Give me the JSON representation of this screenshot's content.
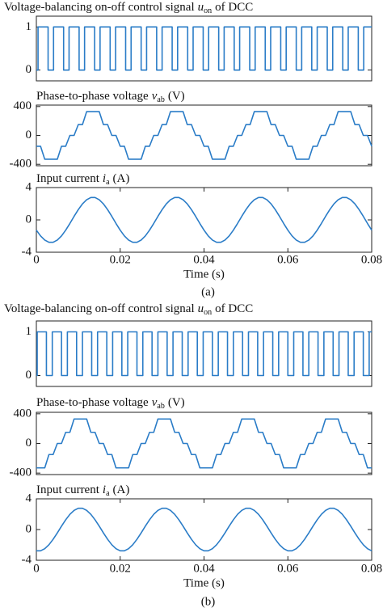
{
  "chart_data": [
    {
      "type": "line",
      "title": {
        "text": "Voltage-balancing on-off control signal",
        "symbol": "u",
        "subscript": "on",
        "suffix": "of DCC"
      },
      "x": [
        0,
        0.0004,
        0.0004,
        0.0028,
        0.0028,
        0.0041,
        0.0041,
        0.0065,
        0.0065,
        0.0078,
        0.0078,
        0.0102,
        0.0102,
        0.0115,
        0.0115,
        0.0139,
        0.0139,
        0.0152,
        0.0152,
        0.0176,
        0.0176,
        0.0189,
        0.0189,
        0.0213,
        0.0213,
        0.0226,
        0.0226,
        0.025,
        0.025,
        0.0263,
        0.0263,
        0.0287,
        0.0287,
        0.03,
        0.03,
        0.0324,
        0.0324,
        0.0337,
        0.0337,
        0.0361,
        0.0361,
        0.0374,
        0.0374,
        0.0398,
        0.0398,
        0.0411,
        0.0411,
        0.0435,
        0.0435,
        0.0448,
        0.0448,
        0.0472,
        0.0472,
        0.0485,
        0.0485,
        0.0509,
        0.0509,
        0.0522,
        0.0522,
        0.0546,
        0.0546,
        0.0559,
        0.0559,
        0.0583,
        0.0583,
        0.0596,
        0.0596,
        0.062,
        0.062,
        0.0633,
        0.0633,
        0.0657,
        0.0657,
        0.067,
        0.067,
        0.0694,
        0.0694,
        0.0707,
        0.0707,
        0.0731,
        0.0731,
        0.0744,
        0.0744,
        0.0768,
        0.0768,
        0.0781,
        0.0781,
        0.08
      ],
      "values": [
        0,
        0,
        1,
        1,
        0,
        0,
        1,
        1,
        0,
        0,
        1,
        1,
        0,
        0,
        1,
        1,
        0,
        0,
        1,
        1,
        0,
        0,
        1,
        1,
        0,
        0,
        1,
        1,
        0,
        0,
        1,
        1,
        0,
        0,
        1,
        1,
        0,
        0,
        1,
        1,
        0,
        0,
        1,
        1,
        0,
        0,
        1,
        1,
        0,
        0,
        1,
        1,
        0,
        0,
        1,
        1,
        0,
        0,
        1,
        1,
        0,
        0,
        1,
        1,
        0,
        0,
        1,
        1,
        0,
        0,
        1,
        1,
        0,
        0,
        1,
        1,
        0,
        0,
        1,
        1,
        0,
        0,
        1,
        1,
        0,
        0,
        1,
        1
      ],
      "color": "#2a7cc7",
      "xlim": [
        0,
        0.08
      ],
      "ylim": [
        -0.25,
        1.25
      ],
      "yticks": [
        0,
        1
      ]
    },
    {
      "type": "line",
      "title": {
        "text": "Phase-to-phase voltage",
        "symbol": "v",
        "subscript": "ab",
        "suffix": "(V)"
      },
      "x": [
        0,
        0.001,
        0.002,
        0.003,
        0.004,
        0.005,
        0.006,
        0.007,
        0.008,
        0.009,
        0.01,
        0.011,
        0.012,
        0.013,
        0.014,
        0.015,
        0.016,
        0.017,
        0.018,
        0.019,
        0.02,
        0.021,
        0.022,
        0.023,
        0.024,
        0.025,
        0.026,
        0.027,
        0.028,
        0.029,
        0.03,
        0.031,
        0.032,
        0.033,
        0.034,
        0.035,
        0.036,
        0.037,
        0.038,
        0.039,
        0.04,
        0.041,
        0.042,
        0.043,
        0.044,
        0.045,
        0.046,
        0.047,
        0.048,
        0.049,
        0.05,
        0.051,
        0.052,
        0.053,
        0.054,
        0.055,
        0.056,
        0.057,
        0.058,
        0.059,
        0.06,
        0.061,
        0.062,
        0.063,
        0.064,
        0.065,
        0.066,
        0.067,
        0.068,
        0.069,
        0.07,
        0.071,
        0.072,
        0.073,
        0.074,
        0.075,
        0.076,
        0.077,
        0.078,
        0.079,
        0.08
      ],
      "values": [
        -150,
        -150,
        -330,
        -330,
        -330,
        -330,
        -150,
        -150,
        0,
        0,
        150,
        150,
        330,
        330,
        330,
        330,
        150,
        150,
        0,
        0,
        -150,
        -150,
        -330,
        -330,
        -330,
        -330,
        -150,
        -150,
        0,
        0,
        150,
        150,
        330,
        330,
        330,
        330,
        150,
        150,
        0,
        0,
        -150,
        -150,
        -330,
        -330,
        -330,
        -330,
        -150,
        -150,
        0,
        0,
        150,
        150,
        330,
        330,
        330,
        330,
        150,
        150,
        0,
        0,
        -150,
        -150,
        -330,
        -330,
        -330,
        -330,
        -150,
        -150,
        0,
        0,
        150,
        150,
        330,
        330,
        330,
        330,
        150,
        150,
        0,
        0,
        -150
      ],
      "color": "#2a7cc7",
      "xlim": [
        0,
        0.08
      ],
      "ylim": [
        -420,
        420
      ],
      "yticks": [
        -400,
        0,
        400
      ]
    },
    {
      "type": "line",
      "title": {
        "text": "Input current",
        "symbol": "i",
        "subscript": "a",
        "suffix": "(A)"
      },
      "x": [
        0,
        0.001,
        0.002,
        0.003,
        0.004,
        0.005,
        0.006,
        0.007,
        0.008,
        0.009,
        0.01,
        0.011,
        0.012,
        0.013,
        0.014,
        0.015,
        0.016,
        0.017,
        0.018,
        0.019,
        0.02,
        0.021,
        0.022,
        0.023,
        0.024,
        0.025,
        0.026,
        0.027,
        0.028,
        0.029,
        0.03,
        0.031,
        0.032,
        0.033,
        0.034,
        0.035,
        0.036,
        0.037,
        0.038,
        0.039,
        0.04,
        0.041,
        0.042,
        0.043,
        0.044,
        0.045,
        0.046,
        0.047,
        0.048,
        0.049,
        0.05,
        0.051,
        0.052,
        0.053,
        0.054,
        0.055,
        0.056,
        0.057,
        0.058,
        0.059,
        0.06,
        0.061,
        0.062,
        0.063,
        0.064,
        0.065,
        0.066,
        0.067,
        0.068,
        0.069,
        0.07,
        0.071,
        0.072,
        0.073,
        0.074,
        0.075,
        0.076,
        0.077,
        0.078,
        0.079,
        0.08
      ],
      "values": [
        -1.27,
        -1.98,
        -2.49,
        -2.77,
        -2.77,
        -2.49,
        -1.98,
        -1.27,
        -0.44,
        0.44,
        1.27,
        1.98,
        2.49,
        2.77,
        2.77,
        2.49,
        1.98,
        1.27,
        0.44,
        -0.44,
        -1.27,
        -1.98,
        -2.49,
        -2.77,
        -2.77,
        -2.49,
        -1.98,
        -1.27,
        -0.44,
        0.44,
        1.27,
        1.98,
        2.49,
        2.77,
        2.77,
        2.49,
        1.98,
        1.27,
        0.44,
        -0.44,
        -1.27,
        -1.98,
        -2.49,
        -2.77,
        -2.77,
        -2.49,
        -1.98,
        -1.27,
        -0.44,
        0.44,
        1.27,
        1.98,
        2.49,
        2.77,
        2.77,
        2.49,
        1.98,
        1.27,
        0.44,
        -0.44,
        -1.27,
        -1.98,
        -2.49,
        -2.77,
        -2.77,
        -2.49,
        -1.98,
        -1.27,
        -0.44,
        0.44,
        1.27,
        1.98,
        2.49,
        2.77,
        2.77,
        2.49,
        1.98,
        1.27,
        0.44,
        -0.44,
        -1.27
      ],
      "color": "#2a7cc7",
      "xlim": [
        0,
        0.08
      ],
      "ylim": [
        -4,
        4
      ],
      "yticks": [
        -4,
        0,
        4
      ],
      "xticks": [
        0,
        0.02,
        0.04,
        0.06,
        0.08
      ],
      "xlabel": "Time (s)",
      "caption": "(a)"
    },
    {
      "type": "line",
      "title": {
        "text": "Voltage-balancing on-off control signal",
        "symbol": "u",
        "subscript": "on",
        "suffix": "of DCC"
      },
      "x": [
        0,
        0.0002,
        0.0002,
        0.0024,
        0.0024,
        0.0038,
        0.0038,
        0.006,
        0.006,
        0.0074,
        0.0074,
        0.0096,
        0.0096,
        0.011,
        0.011,
        0.0132,
        0.0132,
        0.0146,
        0.0146,
        0.0168,
        0.0168,
        0.0182,
        0.0182,
        0.0204,
        0.0204,
        0.0218,
        0.0218,
        0.024,
        0.024,
        0.0254,
        0.0254,
        0.0276,
        0.0276,
        0.029,
        0.029,
        0.0312,
        0.0312,
        0.0326,
        0.0326,
        0.0348,
        0.0348,
        0.0362,
        0.0362,
        0.0384,
        0.0384,
        0.0398,
        0.0398,
        0.042,
        0.042,
        0.0434,
        0.0434,
        0.0456,
        0.0456,
        0.047,
        0.047,
        0.0492,
        0.0492,
        0.0506,
        0.0506,
        0.0528,
        0.0528,
        0.0542,
        0.0542,
        0.0564,
        0.0564,
        0.0578,
        0.0578,
        0.06,
        0.06,
        0.0614,
        0.0614,
        0.0636,
        0.0636,
        0.065,
        0.065,
        0.0672,
        0.0672,
        0.0686,
        0.0686,
        0.0708,
        0.0708,
        0.0722,
        0.0722,
        0.0744,
        0.0744,
        0.0758,
        0.0758,
        0.078,
        0.078,
        0.0794,
        0.0794,
        0.08
      ],
      "values": [
        0,
        0,
        1,
        1,
        0,
        0,
        1,
        1,
        0,
        0,
        1,
        1,
        0,
        0,
        1,
        1,
        0,
        0,
        1,
        1,
        0,
        0,
        1,
        1,
        0,
        0,
        1,
        1,
        0,
        0,
        1,
        1,
        0,
        0,
        1,
        1,
        0,
        0,
        1,
        1,
        0,
        0,
        1,
        1,
        0,
        0,
        1,
        1,
        0,
        0,
        1,
        1,
        0,
        0,
        1,
        1,
        0,
        0,
        1,
        1,
        0,
        0,
        1,
        1,
        0,
        0,
        1,
        1,
        0,
        0,
        1,
        1,
        0,
        0,
        1,
        1,
        0,
        0,
        1,
        1,
        0,
        0,
        1,
        1,
        0,
        0,
        1,
        1,
        0,
        0,
        1,
        1
      ],
      "color": "#2a7cc7",
      "xlim": [
        0,
        0.08
      ],
      "ylim": [
        -0.25,
        1.25
      ],
      "yticks": [
        0,
        1
      ]
    },
    {
      "type": "line",
      "title": {
        "text": "Phase-to-phase voltage",
        "symbol": "v",
        "subscript": "ab",
        "suffix": "(V)"
      },
      "x": [
        0,
        0.001,
        0.002,
        0.003,
        0.004,
        0.005,
        0.006,
        0.007,
        0.008,
        0.009,
        0.01,
        0.011,
        0.012,
        0.013,
        0.014,
        0.015,
        0.016,
        0.017,
        0.018,
        0.019,
        0.02,
        0.021,
        0.022,
        0.023,
        0.024,
        0.025,
        0.026,
        0.027,
        0.028,
        0.029,
        0.03,
        0.031,
        0.032,
        0.033,
        0.034,
        0.035,
        0.036,
        0.037,
        0.038,
        0.039,
        0.04,
        0.041,
        0.042,
        0.043,
        0.044,
        0.045,
        0.046,
        0.047,
        0.048,
        0.049,
        0.05,
        0.051,
        0.052,
        0.053,
        0.054,
        0.055,
        0.056,
        0.057,
        0.058,
        0.059,
        0.06,
        0.061,
        0.062,
        0.063,
        0.064,
        0.065,
        0.066,
        0.067,
        0.068,
        0.069,
        0.07,
        0.071,
        0.072,
        0.073,
        0.074,
        0.075,
        0.076,
        0.077,
        0.078,
        0.079,
        0.08
      ],
      "values": [
        -330,
        -330,
        -330,
        -150,
        -150,
        0,
        0,
        150,
        150,
        330,
        330,
        330,
        330,
        150,
        150,
        0,
        0,
        -150,
        -150,
        -330,
        -330,
        -330,
        -330,
        -150,
        -150,
        0,
        0,
        150,
        150,
        330,
        330,
        330,
        330,
        150,
        150,
        0,
        0,
        -150,
        -150,
        -330,
        -330,
        -330,
        -330,
        -150,
        -150,
        0,
        0,
        150,
        150,
        330,
        330,
        330,
        330,
        150,
        150,
        0,
        0,
        -150,
        -150,
        -330,
        -330,
        -330,
        -330,
        -150,
        -150,
        0,
        0,
        150,
        150,
        330,
        330,
        330,
        330,
        150,
        150,
        0,
        0,
        -150,
        -150,
        -330,
        -330
      ],
      "color": "#2a7cc7",
      "xlim": [
        0,
        0.08
      ],
      "ylim": [
        -420,
        420
      ],
      "yticks": [
        -400,
        0,
        400
      ]
    },
    {
      "type": "line",
      "title": {
        "text": "Input current",
        "symbol": "i",
        "subscript": "a",
        "suffix": "(A)"
      },
      "x": [
        0,
        0.001,
        0.002,
        0.003,
        0.004,
        0.005,
        0.006,
        0.007,
        0.008,
        0.009,
        0.01,
        0.011,
        0.012,
        0.013,
        0.014,
        0.015,
        0.016,
        0.017,
        0.018,
        0.019,
        0.02,
        0.021,
        0.022,
        0.023,
        0.024,
        0.025,
        0.026,
        0.027,
        0.028,
        0.029,
        0.03,
        0.031,
        0.032,
        0.033,
        0.034,
        0.035,
        0.036,
        0.037,
        0.038,
        0.039,
        0.04,
        0.041,
        0.042,
        0.043,
        0.044,
        0.045,
        0.046,
        0.047,
        0.048,
        0.049,
        0.05,
        0.051,
        0.052,
        0.053,
        0.054,
        0.055,
        0.056,
        0.057,
        0.058,
        0.059,
        0.06,
        0.061,
        0.062,
        0.063,
        0.064,
        0.065,
        0.066,
        0.067,
        0.068,
        0.069,
        0.07,
        0.071,
        0.072,
        0.073,
        0.074,
        0.075,
        0.076,
        0.077,
        0.078,
        0.079,
        0.08
      ],
      "values": [
        -2.77,
        -2.77,
        -2.49,
        -1.98,
        -1.27,
        -0.44,
        0.44,
        1.27,
        1.98,
        2.49,
        2.77,
        2.77,
        2.49,
        1.98,
        1.27,
        0.44,
        -0.44,
        -1.27,
        -1.98,
        -2.49,
        -2.77,
        -2.77,
        -2.49,
        -1.98,
        -1.27,
        -0.44,
        0.44,
        1.27,
        1.98,
        2.49,
        2.77,
        2.77,
        2.49,
        1.98,
        1.27,
        0.44,
        -0.44,
        -1.27,
        -1.98,
        -2.49,
        -2.77,
        -2.77,
        -2.49,
        -1.98,
        -1.27,
        -0.44,
        0.44,
        1.27,
        1.98,
        2.49,
        2.77,
        2.77,
        2.49,
        1.98,
        1.27,
        0.44,
        -0.44,
        -1.27,
        -1.98,
        -2.49,
        -2.77,
        -2.77,
        -2.49,
        -1.98,
        -1.27,
        -0.44,
        0.44,
        1.27,
        1.98,
        2.49,
        2.77,
        2.77,
        2.49,
        1.98,
        1.27,
        0.44,
        -0.44,
        -1.27,
        -1.98,
        -2.49,
        -2.77
      ],
      "color": "#2a7cc7",
      "xlim": [
        0,
        0.08
      ],
      "ylim": [
        -4,
        4
      ],
      "yticks": [
        -4,
        0,
        4
      ],
      "xticks": [
        0,
        0.02,
        0.04,
        0.06,
        0.08
      ],
      "xlabel": "Time (s)",
      "caption": "(b)"
    }
  ]
}
